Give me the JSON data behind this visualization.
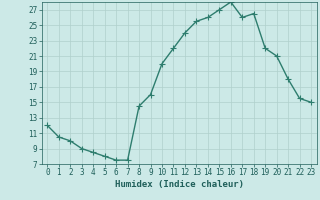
{
  "x": [
    0,
    1,
    2,
    3,
    4,
    5,
    6,
    7,
    8,
    9,
    10,
    11,
    12,
    13,
    14,
    15,
    16,
    17,
    18,
    19,
    20,
    21,
    22,
    23
  ],
  "y": [
    12,
    10.5,
    10,
    9,
    8.5,
    8,
    7.5,
    7.5,
    14.5,
    16,
    20,
    22,
    24,
    25.5,
    26,
    27,
    28,
    26,
    26.5,
    22,
    21,
    18,
    15.5,
    15
  ],
  "line_color": "#2e7d6e",
  "marker": "+",
  "marker_size": 4,
  "linewidth": 1.0,
  "bg_color": "#cce9e7",
  "grid_color": "#b0d0cc",
  "xlabel": "Humidex (Indice chaleur)",
  "xlim": [
    -0.5,
    23.5
  ],
  "ylim": [
    7,
    28
  ],
  "xticks": [
    0,
    1,
    2,
    3,
    4,
    5,
    6,
    7,
    8,
    9,
    10,
    11,
    12,
    13,
    14,
    15,
    16,
    17,
    18,
    19,
    20,
    21,
    22,
    23
  ],
  "yticks": [
    7,
    9,
    11,
    13,
    15,
    17,
    19,
    21,
    23,
    25,
    27
  ],
  "tick_color": "#1f5f5a",
  "axis_tick_fontsize": 5.5,
  "xlabel_fontsize": 6.5
}
